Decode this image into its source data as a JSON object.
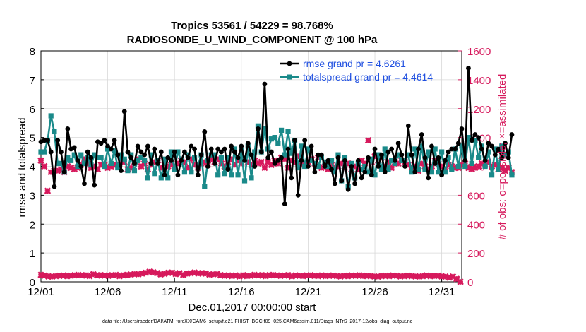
{
  "colors": {
    "rmse": "#000000",
    "spread": "#1a8a8a",
    "obs": "#d6195c",
    "legend_text": "#1f4fe0",
    "axis": "#000000",
    "grid": "#d8d8d8"
  },
  "chart_data": {
    "type": "line",
    "title": "Tropics 53561 / 54229 = 98.768%",
    "subtitle": "RADIOSONDE_U_WIND_COMPONENT @ 100 hPa",
    "xlabel": "Dec.01,2017 00:00:00 start",
    "ylabel_left": "rmse and totalspread",
    "ylabel_right": "# of obs: o=possible; ×=assimilated",
    "footnote": "data file: /Users/raeder/DAI/ATM_forcXX/CAM6_setup/f.e21.FHIST_BGC.f09_025.CAM6assim.011/Diags_NTrS_2017-12/obs_diag_output.nc",
    "x_range": [
      0,
      31.5
    ],
    "xtick_values": [
      0,
      5,
      10,
      15,
      20,
      25,
      30
    ],
    "xtick_labels": [
      "12/01",
      "12/06",
      "12/11",
      "12/16",
      "12/21",
      "12/26",
      "12/31"
    ],
    "ylim_left": [
      0,
      8
    ],
    "yticks_left": [
      "0",
      "1",
      "2",
      "3",
      "4",
      "5",
      "6",
      "7",
      "8"
    ],
    "ylim_right": [
      0,
      1600
    ],
    "yticks_right": [
      "0",
      "200",
      "400",
      "600",
      "800",
      "1000",
      "1200",
      "1400",
      "1600"
    ],
    "grid": true,
    "legend": [
      "rmse grand pr = 4.6261",
      "totalspread grand pr = 4.4614"
    ],
    "step_days": 0.25,
    "series": [
      {
        "name": "rmse",
        "axis": "left",
        "values": [
          4.85,
          4.9,
          4.9,
          4.5,
          3.3,
          4.9,
          4.5,
          3.8,
          5.3,
          4.6,
          4.65,
          4.2,
          4.0,
          3.4,
          4.5,
          4.3,
          3.35,
          4.85,
          4.8,
          4.9,
          4.7,
          4.6,
          4.9,
          4.4,
          3.85,
          5.9,
          4.5,
          4.3,
          4.1,
          4.7,
          4.5,
          4.4,
          4.7,
          4.1,
          4.6,
          4.1,
          4.5,
          3.7,
          4.3,
          4.2,
          4.5,
          3.7,
          4.2,
          4.5,
          4.3,
          4.7,
          4.6,
          3.7,
          4.4,
          5.2,
          4.0,
          4.6,
          4.1,
          4.6,
          4.5,
          4.6,
          3.9,
          4.7,
          4.5,
          4.3,
          4.7,
          4.2,
          4.8,
          4.4,
          4.0,
          5.3,
          4.5,
          6.85,
          4.3,
          4.5,
          4.1,
          4.2,
          4.3,
          2.7,
          4.6,
          3.6,
          4.9,
          3.0,
          4.2,
          4.9,
          4.0,
          4.7,
          3.8,
          4.4,
          4.4,
          4.0,
          4.2,
          3.9,
          3.4,
          4.3,
          3.5,
          4.2,
          3.2,
          4.0,
          3.4,
          4.2,
          3.6,
          3.8,
          4.3,
          3.7,
          4.6,
          4.0,
          4.4,
          3.8,
          4.5,
          4.6,
          4.2,
          4.8,
          4.4,
          4.0,
          5.4,
          4.4,
          3.8,
          4.6,
          5.1,
          4.3,
          3.6,
          4.7,
          4.1,
          4.3,
          3.7,
          4.2,
          4.5,
          4.6,
          4.6,
          4.8,
          5.3,
          4.2,
          7.4,
          4.9,
          5.1,
          5.0,
          4.6,
          4.2,
          4.8,
          4.7,
          4.4,
          4.6,
          4.3,
          4.8,
          4.3,
          5.1
        ]
      },
      {
        "name": "totalspread",
        "axis": "left",
        "values": [
          4.5,
          4.5,
          4.9,
          5.75,
          5.2,
          4.1,
          4.1,
          3.8,
          4.3,
          4.2,
          4.4,
          4.0,
          4.4,
          4.1,
          4.3,
          4.05,
          4.4,
          4.3,
          4.3,
          4.0,
          4.6,
          4.1,
          4.55,
          3.95,
          4.4,
          4.25,
          3.85,
          4.4,
          3.85,
          4.2,
          4.3,
          4.2,
          3.6,
          4.4,
          3.75,
          4.2,
          3.6,
          4.25,
          3.6,
          4.5,
          3.9,
          4.5,
          4.2,
          3.8,
          4.4,
          3.8,
          4.3,
          4.0,
          4.4,
          3.3,
          4.2,
          4.4,
          4.4,
          3.7,
          4.3,
          3.75,
          4.3,
          3.7,
          4.6,
          3.7,
          4.55,
          3.5,
          4.7,
          3.6,
          4.5,
          5.4,
          4.5,
          5.3,
          4.6,
          4.95,
          5.0,
          4.8,
          5.25,
          4.4,
          5.2,
          4.45,
          4.9,
          3.95,
          4.7,
          4.0,
          4.6,
          4.2,
          4.1,
          4.0,
          4.3,
          4.15,
          4.0,
          4.2,
          3.8,
          4.4,
          3.5,
          4.3,
          3.3,
          4.1,
          3.6,
          4.1,
          3.9,
          4.0,
          3.8,
          4.25,
          3.7,
          4.4,
          3.9,
          4.6,
          3.9,
          4.2,
          4.1,
          4.4,
          4.2,
          4.2,
          4.4,
          3.8,
          4.6,
          3.9,
          4.7,
          3.9,
          4.5,
          3.8,
          4.6,
          3.8,
          4.5,
          3.8,
          4.3,
          3.9,
          4.6,
          4.0,
          4.7,
          4.0,
          5.0,
          4.1,
          4.9,
          4.3,
          4.7,
          4.0,
          4.5,
          3.7,
          4.6,
          3.9,
          4.7,
          4.4,
          4.5,
          3.7
        ]
      },
      {
        "name": "assimilated_obs",
        "axis": "right",
        "marker": "x",
        "values": [
          840,
          800,
          630,
          760,
          770,
          770,
          780,
          760,
          800,
          790,
          780,
          790,
          810,
          850,
          820,
          790,
          800,
          780,
          810,
          810,
          790,
          800,
          810,
          810,
          840,
          830,
          780,
          790,
          830,
          850,
          800,
          820,
          780,
          810,
          830,
          840,
          790,
          840,
          800,
          810,
          800,
          820,
          840,
          830,
          790,
          850,
          810,
          790,
          820,
          830,
          810,
          850,
          830,
          850,
          820,
          800,
          830,
          850,
          810,
          840,
          820,
          850,
          830,
          810,
          840,
          820,
          830,
          790,
          830,
          810,
          840,
          820,
          860,
          850,
          790,
          840,
          830,
          870,
          820,
          810,
          830,
          850,
          820,
          860,
          790,
          800,
          780,
          810,
          790,
          800,
          820,
          790,
          820,
          780,
          800,
          780,
          840,
          820,
          980,
          830,
          870,
          810,
          860,
          800,
          830,
          790,
          830,
          820,
          840,
          830,
          810,
          790,
          800,
          770,
          820,
          800,
          780,
          800,
          840,
          820,
          800,
          780,
          810,
          800,
          790,
          790,
          810,
          820,
          790,
          780,
          790,
          800,
          820,
          810,
          830,
          800,
          810,
          780,
          790,
          770,
          790,
          760
        ]
      },
      {
        "name": "possible_obs_low",
        "axis": "right",
        "marker": "o",
        "values": [
          48,
          44,
          38,
          36,
          40,
          42,
          44,
          40,
          42,
          46,
          48,
          44,
          46,
          40,
          52,
          44,
          46,
          44,
          42,
          46,
          48,
          40,
          46,
          48,
          50,
          54,
          52,
          58,
          62,
          70,
          66,
          60,
          52,
          56,
          62,
          64,
          54,
          60,
          48,
          56,
          60,
          64,
          58,
          60,
          58,
          50,
          52,
          54,
          46,
          42,
          44,
          40,
          44,
          38,
          46,
          40,
          42,
          48,
          44,
          46,
          40,
          46,
          48,
          44,
          42,
          44,
          46,
          38,
          44,
          42,
          40,
          44,
          46,
          42,
          40,
          44,
          40,
          42,
          44,
          40,
          38,
          42,
          40,
          44,
          42,
          46,
          40,
          42,
          40,
          38,
          36,
          40,
          42,
          40,
          44,
          42,
          38,
          40,
          42,
          40,
          38,
          36,
          40,
          44,
          40,
          40,
          42,
          38,
          36,
          30,
          36,
          20,
          0
        ]
      }
    ]
  }
}
